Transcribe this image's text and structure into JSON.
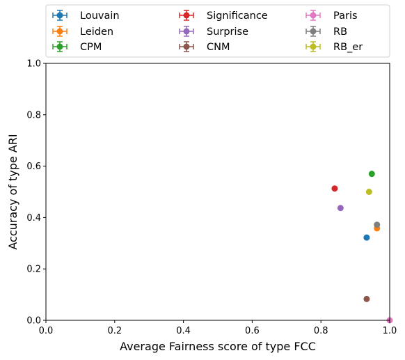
{
  "chart_data": {
    "type": "scatter",
    "xlabel": "Average Fairness score of type FCC",
    "ylabel": "Accuracy of type ARI",
    "xlim": [
      0.0,
      1.0
    ],
    "ylim": [
      0.0,
      1.0
    ],
    "xticks": [
      "0.0",
      "0.2",
      "0.4",
      "0.6",
      "0.8",
      "1.0"
    ],
    "yticks": [
      "0.0",
      "0.2",
      "0.4",
      "0.6",
      "0.8",
      "1.0"
    ],
    "grid": false,
    "legend_position": "top, above plot, 3 columns",
    "series": [
      {
        "name": "Louvain",
        "color": "#1f77b4",
        "x": 0.933,
        "y": 0.322
      },
      {
        "name": "Leiden",
        "color": "#ff7f0e",
        "x": 0.963,
        "y": 0.358
      },
      {
        "name": "CPM",
        "color": "#2ca02c",
        "x": 0.948,
        "y": 0.57
      },
      {
        "name": "Significance",
        "color": "#d62728",
        "x": 0.84,
        "y": 0.513
      },
      {
        "name": "Surprise",
        "color": "#9467bd",
        "x": 0.857,
        "y": 0.437
      },
      {
        "name": "CNM",
        "color": "#8c564b",
        "x": 0.933,
        "y": 0.083
      },
      {
        "name": "Paris",
        "color": "#e377c2",
        "x": 1.0,
        "y": 0.0
      },
      {
        "name": "RB",
        "color": "#7f7f7f",
        "x": 0.963,
        "y": 0.372
      },
      {
        "name": "RB_er",
        "color": "#bcbd22",
        "x": 0.94,
        "y": 0.5
      }
    ]
  }
}
